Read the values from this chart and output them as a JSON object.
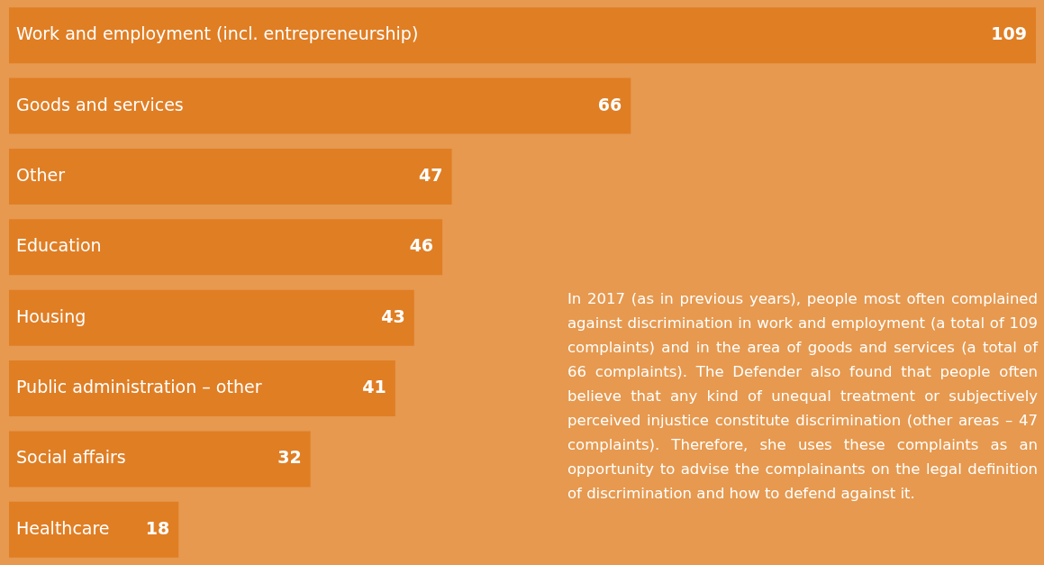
{
  "chart_data": {
    "type": "bar",
    "orientation": "horizontal",
    "categories": [
      "Work and employment (incl. entrepreneurship)",
      "Goods and services",
      "Other",
      "Education",
      "Housing",
      "Public administration – other",
      "Social affairs",
      "Healthcare"
    ],
    "values": [
      109,
      66,
      47,
      46,
      43,
      41,
      32,
      18
    ],
    "color": "#e07e24",
    "data_labels": true,
    "legend": false,
    "annotations": [
      "In 2017 (as in previous years), people most often complained against discrimination in work and employment (a total of 109 complaints) and in the area of goods and services (a total of 66 complaints). The Defender also found that people often believe that any kind of unequal treatment or subjectively perceived injustice constitute discrimination (other areas – 47 complaints). Therefore, she uses these complaints as an opportunity to advise the complainants on the legal definition of discrimination and how to defend against it."
    ]
  }
}
